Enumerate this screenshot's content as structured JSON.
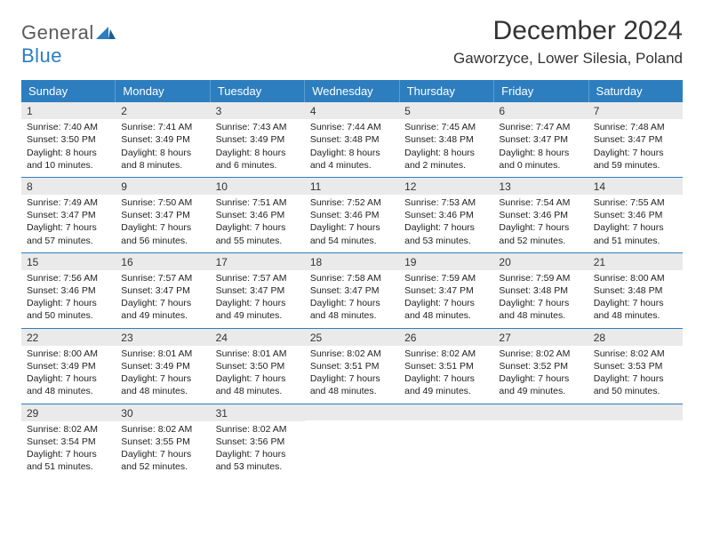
{
  "brand": {
    "part1": "General",
    "part2": "Blue"
  },
  "title": "December 2024",
  "location": "Gaworzyce, Lower Silesia, Poland",
  "colors": {
    "header_bg": "#2d7ebf",
    "header_text": "#ffffff",
    "daynum_bg": "#eaeaea",
    "rule": "#2d7ebf"
  },
  "weekdays": [
    "Sunday",
    "Monday",
    "Tuesday",
    "Wednesday",
    "Thursday",
    "Friday",
    "Saturday"
  ],
  "weeks": [
    [
      {
        "n": "1",
        "sr": "Sunrise: 7:40 AM",
        "ss": "Sunset: 3:50 PM",
        "dl": "Daylight: 8 hours and 10 minutes."
      },
      {
        "n": "2",
        "sr": "Sunrise: 7:41 AM",
        "ss": "Sunset: 3:49 PM",
        "dl": "Daylight: 8 hours and 8 minutes."
      },
      {
        "n": "3",
        "sr": "Sunrise: 7:43 AM",
        "ss": "Sunset: 3:49 PM",
        "dl": "Daylight: 8 hours and 6 minutes."
      },
      {
        "n": "4",
        "sr": "Sunrise: 7:44 AM",
        "ss": "Sunset: 3:48 PM",
        "dl": "Daylight: 8 hours and 4 minutes."
      },
      {
        "n": "5",
        "sr": "Sunrise: 7:45 AM",
        "ss": "Sunset: 3:48 PM",
        "dl": "Daylight: 8 hours and 2 minutes."
      },
      {
        "n": "6",
        "sr": "Sunrise: 7:47 AM",
        "ss": "Sunset: 3:47 PM",
        "dl": "Daylight: 8 hours and 0 minutes."
      },
      {
        "n": "7",
        "sr": "Sunrise: 7:48 AM",
        "ss": "Sunset: 3:47 PM",
        "dl": "Daylight: 7 hours and 59 minutes."
      }
    ],
    [
      {
        "n": "8",
        "sr": "Sunrise: 7:49 AM",
        "ss": "Sunset: 3:47 PM",
        "dl": "Daylight: 7 hours and 57 minutes."
      },
      {
        "n": "9",
        "sr": "Sunrise: 7:50 AM",
        "ss": "Sunset: 3:47 PM",
        "dl": "Daylight: 7 hours and 56 minutes."
      },
      {
        "n": "10",
        "sr": "Sunrise: 7:51 AM",
        "ss": "Sunset: 3:46 PM",
        "dl": "Daylight: 7 hours and 55 minutes."
      },
      {
        "n": "11",
        "sr": "Sunrise: 7:52 AM",
        "ss": "Sunset: 3:46 PM",
        "dl": "Daylight: 7 hours and 54 minutes."
      },
      {
        "n": "12",
        "sr": "Sunrise: 7:53 AM",
        "ss": "Sunset: 3:46 PM",
        "dl": "Daylight: 7 hours and 53 minutes."
      },
      {
        "n": "13",
        "sr": "Sunrise: 7:54 AM",
        "ss": "Sunset: 3:46 PM",
        "dl": "Daylight: 7 hours and 52 minutes."
      },
      {
        "n": "14",
        "sr": "Sunrise: 7:55 AM",
        "ss": "Sunset: 3:46 PM",
        "dl": "Daylight: 7 hours and 51 minutes."
      }
    ],
    [
      {
        "n": "15",
        "sr": "Sunrise: 7:56 AM",
        "ss": "Sunset: 3:46 PM",
        "dl": "Daylight: 7 hours and 50 minutes."
      },
      {
        "n": "16",
        "sr": "Sunrise: 7:57 AM",
        "ss": "Sunset: 3:47 PM",
        "dl": "Daylight: 7 hours and 49 minutes."
      },
      {
        "n": "17",
        "sr": "Sunrise: 7:57 AM",
        "ss": "Sunset: 3:47 PM",
        "dl": "Daylight: 7 hours and 49 minutes."
      },
      {
        "n": "18",
        "sr": "Sunrise: 7:58 AM",
        "ss": "Sunset: 3:47 PM",
        "dl": "Daylight: 7 hours and 48 minutes."
      },
      {
        "n": "19",
        "sr": "Sunrise: 7:59 AM",
        "ss": "Sunset: 3:47 PM",
        "dl": "Daylight: 7 hours and 48 minutes."
      },
      {
        "n": "20",
        "sr": "Sunrise: 7:59 AM",
        "ss": "Sunset: 3:48 PM",
        "dl": "Daylight: 7 hours and 48 minutes."
      },
      {
        "n": "21",
        "sr": "Sunrise: 8:00 AM",
        "ss": "Sunset: 3:48 PM",
        "dl": "Daylight: 7 hours and 48 minutes."
      }
    ],
    [
      {
        "n": "22",
        "sr": "Sunrise: 8:00 AM",
        "ss": "Sunset: 3:49 PM",
        "dl": "Daylight: 7 hours and 48 minutes."
      },
      {
        "n": "23",
        "sr": "Sunrise: 8:01 AM",
        "ss": "Sunset: 3:49 PM",
        "dl": "Daylight: 7 hours and 48 minutes."
      },
      {
        "n": "24",
        "sr": "Sunrise: 8:01 AM",
        "ss": "Sunset: 3:50 PM",
        "dl": "Daylight: 7 hours and 48 minutes."
      },
      {
        "n": "25",
        "sr": "Sunrise: 8:02 AM",
        "ss": "Sunset: 3:51 PM",
        "dl": "Daylight: 7 hours and 48 minutes."
      },
      {
        "n": "26",
        "sr": "Sunrise: 8:02 AM",
        "ss": "Sunset: 3:51 PM",
        "dl": "Daylight: 7 hours and 49 minutes."
      },
      {
        "n": "27",
        "sr": "Sunrise: 8:02 AM",
        "ss": "Sunset: 3:52 PM",
        "dl": "Daylight: 7 hours and 49 minutes."
      },
      {
        "n": "28",
        "sr": "Sunrise: 8:02 AM",
        "ss": "Sunset: 3:53 PM",
        "dl": "Daylight: 7 hours and 50 minutes."
      }
    ],
    [
      {
        "n": "29",
        "sr": "Sunrise: 8:02 AM",
        "ss": "Sunset: 3:54 PM",
        "dl": "Daylight: 7 hours and 51 minutes."
      },
      {
        "n": "30",
        "sr": "Sunrise: 8:02 AM",
        "ss": "Sunset: 3:55 PM",
        "dl": "Daylight: 7 hours and 52 minutes."
      },
      {
        "n": "31",
        "sr": "Sunrise: 8:02 AM",
        "ss": "Sunset: 3:56 PM",
        "dl": "Daylight: 7 hours and 53 minutes."
      },
      null,
      null,
      null,
      null
    ]
  ]
}
